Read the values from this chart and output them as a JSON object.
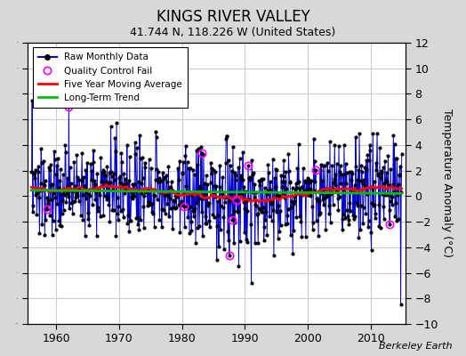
{
  "title": "KINGS RIVER VALLEY",
  "subtitle": "41.744 N, 118.226 W (United States)",
  "ylabel": "Temperature Anomaly (°C)",
  "credit": "Berkeley Earth",
  "ylim": [
    -10,
    12
  ],
  "yticks": [
    -10,
    -8,
    -6,
    -4,
    -2,
    0,
    2,
    4,
    6,
    8,
    10,
    12
  ],
  "xlim": [
    1955.5,
    2015.5
  ],
  "xticks": [
    1960,
    1970,
    1980,
    1990,
    2000,
    2010
  ],
  "start_year": 1956,
  "end_year": 2015,
  "bg_color": "#d8d8d8",
  "plot_bg_color": "#ffffff",
  "raw_color": "#0000cc",
  "moving_avg_color": "#ff0000",
  "trend_color": "#00bb00",
  "qc_color": "#ff00ff",
  "seed": 137
}
